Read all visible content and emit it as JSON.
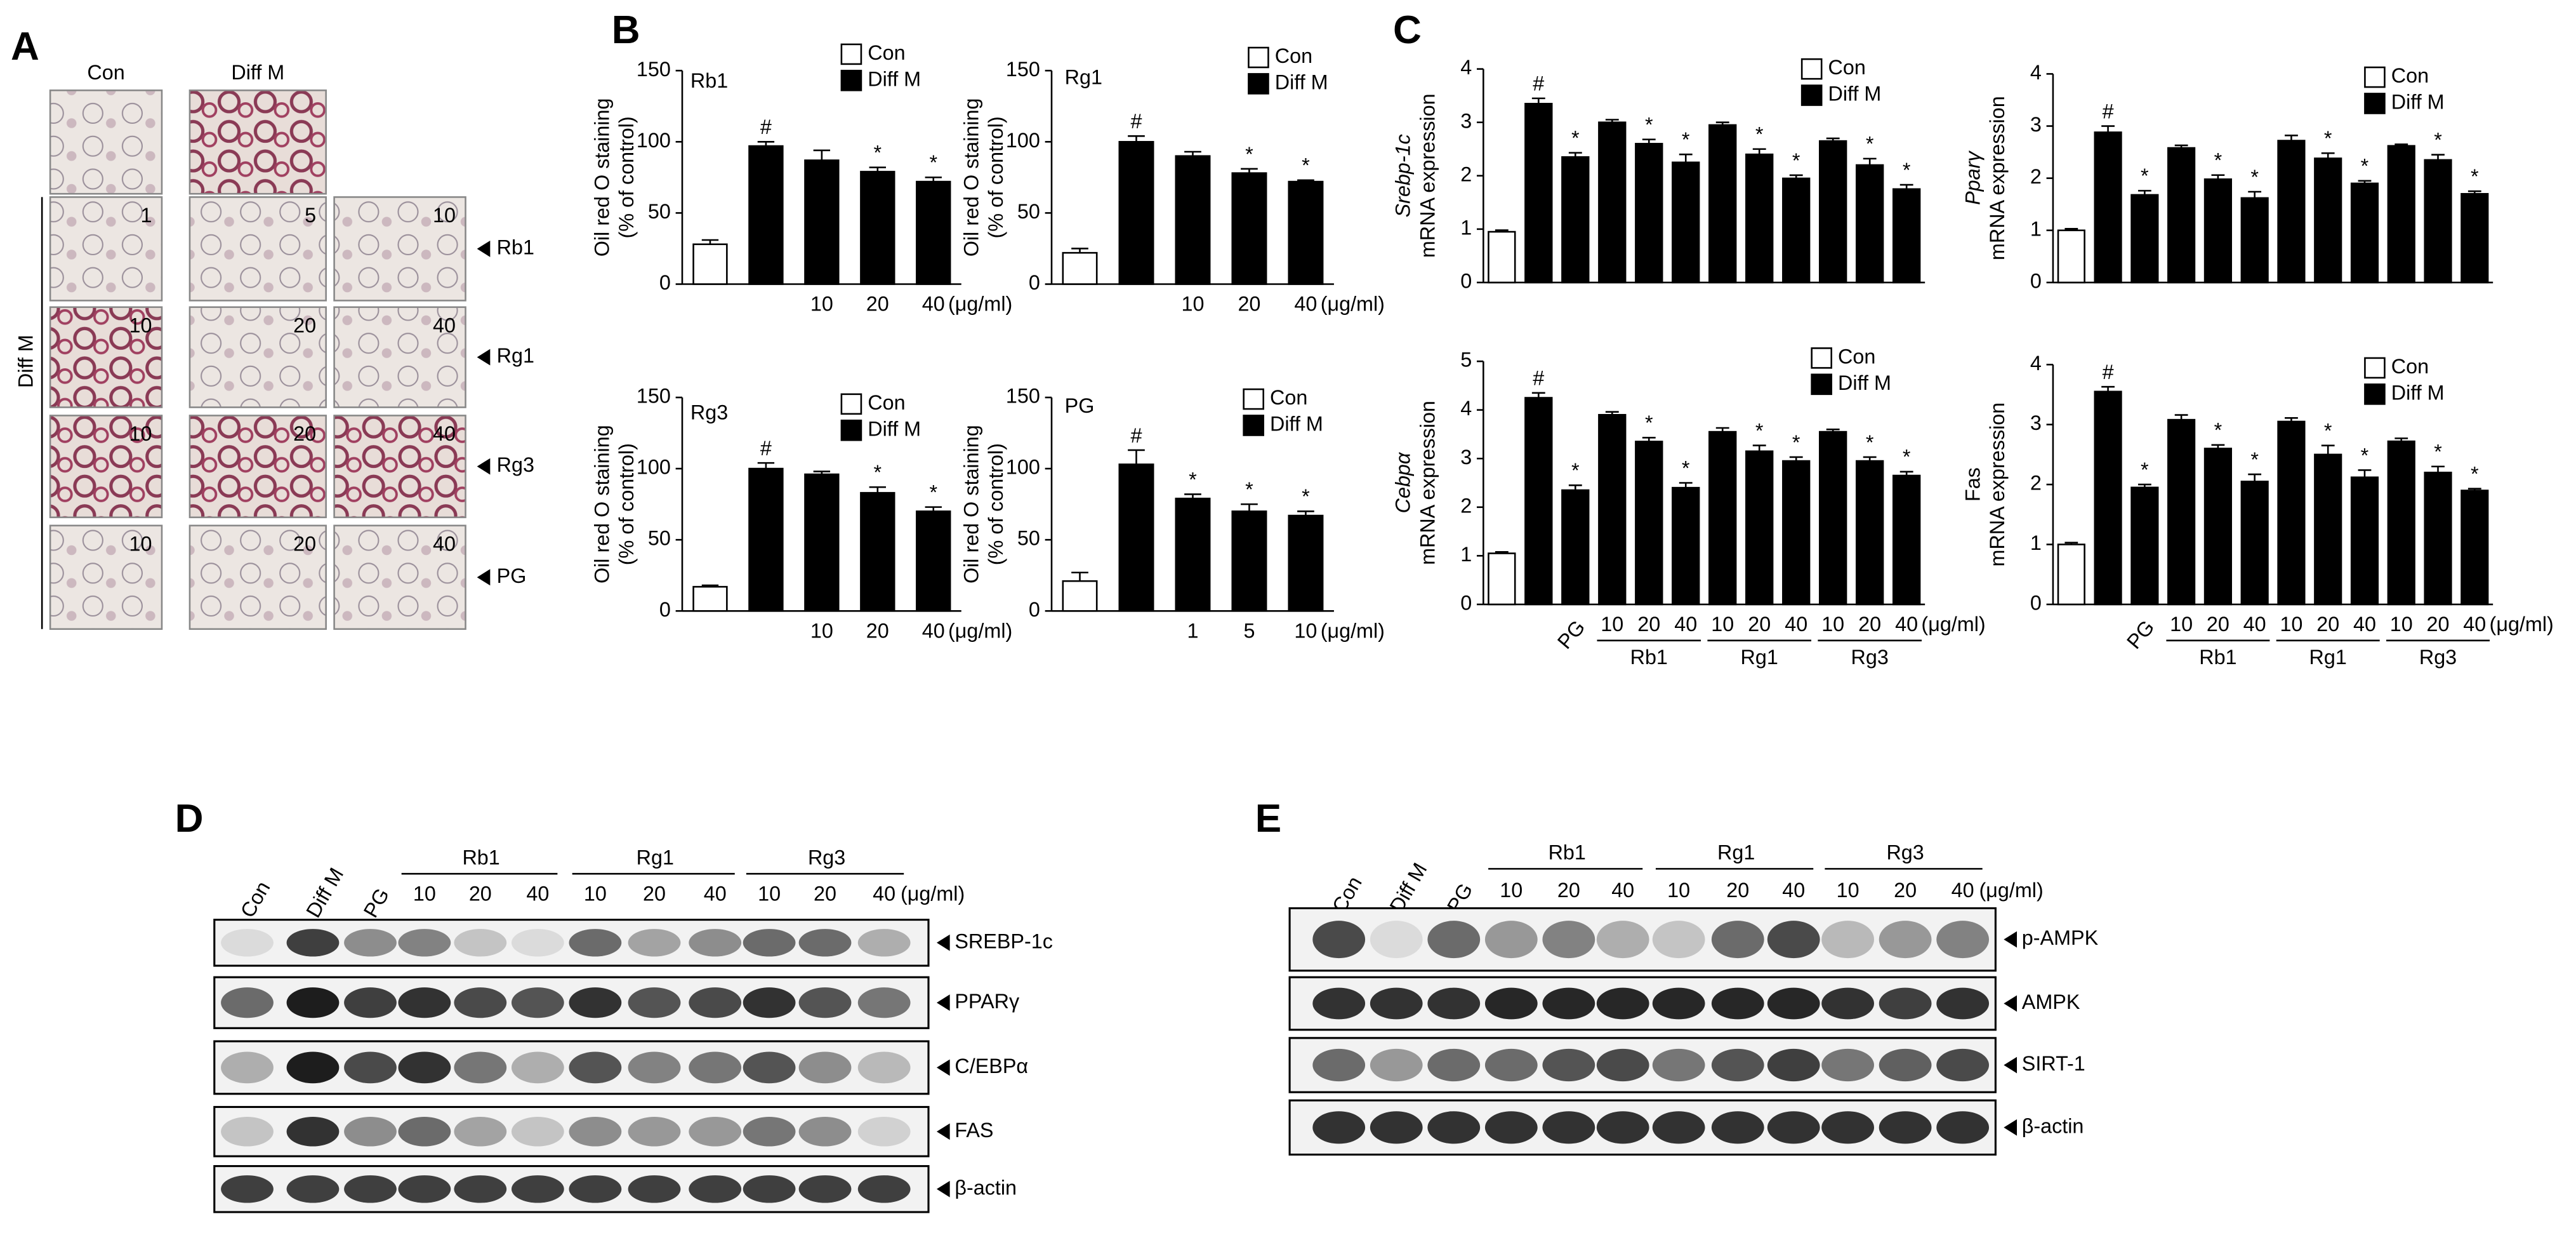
{
  "panel_labels": [
    "A",
    "B",
    "C",
    "D",
    "E"
  ],
  "panel_a": {
    "columns": [
      "Con",
      "Diff M"
    ],
    "side_label": "Diff M",
    "rows": [
      {
        "label": "Rb1",
        "doses": [
          "1",
          "5",
          "10"
        ]
      },
      {
        "label": "Rg1",
        "doses": [
          "10",
          "20",
          "40"
        ]
      },
      {
        "label": "Rg3",
        "doses": [
          "10",
          "20",
          "40"
        ]
      },
      {
        "label": "PG",
        "doses": [
          "10",
          "20",
          "40"
        ]
      }
    ]
  },
  "chart_data": [
    {
      "type": "bar",
      "title": "Rb1",
      "ylabel": [
        "Oil red O staining",
        "(% of control)"
      ],
      "ylim": [
        0,
        150
      ],
      "yticks": [
        0,
        50,
        100,
        150
      ],
      "legend": [
        {
          "name": "Con",
          "color": "#ffffff"
        },
        {
          "name": "Diff M",
          "color": "#000000"
        }
      ],
      "categories": [
        null,
        null,
        "10",
        "20",
        "40"
      ],
      "unit": "(μg/ml)",
      "values": [
        28,
        97,
        87,
        79,
        72
      ],
      "errors": [
        3,
        3,
        7,
        3,
        3
      ],
      "colors": [
        "#ffffff",
        "#000000",
        "#000000",
        "#000000",
        "#000000"
      ],
      "markers": [
        null,
        "#",
        null,
        "*",
        "*"
      ]
    },
    {
      "type": "bar",
      "title": "Rg1",
      "ylabel": [
        "Oil red O staining",
        "(% of control)"
      ],
      "ylim": [
        0,
        150
      ],
      "yticks": [
        0,
        50,
        100,
        150
      ],
      "legend": [
        {
          "name": "Con",
          "color": "#ffffff"
        },
        {
          "name": "Diff M",
          "color": "#000000"
        }
      ],
      "categories": [
        null,
        null,
        "10",
        "20",
        "40"
      ],
      "unit": "(μg/ml)",
      "values": [
        22,
        100,
        90,
        78,
        72
      ],
      "errors": [
        3,
        4,
        3,
        3,
        1
      ],
      "colors": [
        "#ffffff",
        "#000000",
        "#000000",
        "#000000",
        "#000000"
      ],
      "markers": [
        null,
        "#",
        null,
        "*",
        "*"
      ]
    },
    {
      "type": "bar",
      "title": "Rg3",
      "ylabel": [
        "Oil red O staining",
        "(% of control)"
      ],
      "ylim": [
        0,
        150
      ],
      "yticks": [
        0,
        50,
        100,
        150
      ],
      "legend": [
        {
          "name": "Con",
          "color": "#ffffff"
        },
        {
          "name": "Diff M",
          "color": "#000000"
        }
      ],
      "categories": [
        null,
        null,
        "10",
        "20",
        "40"
      ],
      "unit": "(μg/ml)",
      "values": [
        17,
        100,
        96,
        83,
        70
      ],
      "errors": [
        1,
        4,
        2,
        4,
        3
      ],
      "colors": [
        "#ffffff",
        "#000000",
        "#000000",
        "#000000",
        "#000000"
      ],
      "markers": [
        null,
        "#",
        null,
        "*",
        "*"
      ]
    },
    {
      "type": "bar",
      "title": "PG",
      "ylabel": [
        "Oil red O staining",
        "(% of control)"
      ],
      "ylim": [
        0,
        150
      ],
      "yticks": [
        0,
        50,
        100,
        150
      ],
      "legend": [
        {
          "name": "Con",
          "color": "#ffffff"
        },
        {
          "name": "Diff M",
          "color": "#000000"
        }
      ],
      "categories": [
        null,
        null,
        "1",
        "5",
        "10"
      ],
      "unit": "(μg/ml)",
      "values": [
        21,
        103,
        79,
        70,
        67
      ],
      "errors": [
        6,
        10,
        3,
        5,
        3
      ],
      "colors": [
        "#ffffff",
        "#000000",
        "#000000",
        "#000000",
        "#000000"
      ],
      "markers": [
        null,
        "#",
        "*",
        "*",
        "*"
      ]
    },
    {
      "type": "bar",
      "ylabel": [
        "Srebp-1c",
        "mRNA expression"
      ],
      "ylabel_italic": true,
      "ylim": [
        0,
        4
      ],
      "yticks": [
        0,
        1,
        2,
        3,
        4
      ],
      "legend": [
        {
          "name": "Con",
          "color": "#ffffff"
        },
        {
          "name": "Diff M",
          "color": "#000000"
        }
      ],
      "categories": [
        null,
        null,
        null,
        null,
        null,
        null,
        null,
        null,
        null,
        null,
        null,
        null
      ],
      "values": [
        0.95,
        3.35,
        2.35,
        3.0,
        2.6,
        2.25,
        2.95,
        2.4,
        1.95,
        2.65,
        2.2,
        1.75
      ],
      "errors": [
        0.03,
        0.1,
        0.08,
        0.05,
        0.08,
        0.15,
        0.05,
        0.1,
        0.06,
        0.05,
        0.12,
        0.08
      ],
      "colors": [
        "#ffffff",
        "#000000",
        "#000000",
        "#000000",
        "#000000",
        "#000000",
        "#000000",
        "#000000",
        "#000000",
        "#000000",
        "#000000",
        "#000000"
      ],
      "markers": [
        null,
        "#",
        "*",
        null,
        "*",
        "*",
        null,
        "*",
        "*",
        null,
        "*",
        "*"
      ]
    },
    {
      "type": "bar",
      "ylabel": [
        "Pparγ",
        "mRNA expression"
      ],
      "ylabel_italic": true,
      "ylim": [
        0,
        4
      ],
      "yticks": [
        0,
        1,
        2,
        3,
        4
      ],
      "legend": [
        {
          "name": "Con",
          "color": "#ffffff"
        },
        {
          "name": "Diff M",
          "color": "#000000"
        }
      ],
      "categories": [
        null,
        null,
        null,
        null,
        null,
        null,
        null,
        null,
        null,
        null,
        null,
        null
      ],
      "values": [
        1.0,
        2.88,
        1.68,
        2.58,
        1.98,
        1.62,
        2.72,
        2.38,
        1.9,
        2.62,
        2.35,
        1.7
      ],
      "errors": [
        0.03,
        0.12,
        0.08,
        0.05,
        0.08,
        0.12,
        0.1,
        0.1,
        0.05,
        0.03,
        0.1,
        0.05
      ],
      "colors": [
        "#ffffff",
        "#000000",
        "#000000",
        "#000000",
        "#000000",
        "#000000",
        "#000000",
        "#000000",
        "#000000",
        "#000000",
        "#000000",
        "#000000"
      ],
      "markers": [
        null,
        "#",
        "*",
        null,
        "*",
        "*",
        null,
        "*",
        "*",
        null,
        "*",
        "*"
      ]
    },
    {
      "type": "bar",
      "ylabel": [
        "Cebpα",
        "mRNA expression"
      ],
      "ylabel_italic": true,
      "ylim": [
        0,
        5
      ],
      "yticks": [
        0,
        1,
        2,
        3,
        4,
        5
      ],
      "legend": [
        {
          "name": "Con",
          "color": "#ffffff"
        },
        {
          "name": "Diff M",
          "color": "#000000"
        }
      ],
      "categories": [
        null,
        null,
        "PG",
        "10",
        "20",
        "40",
        "10",
        "20",
        "40",
        "10",
        "20",
        "40"
      ],
      "unit": "(μg/ml)",
      "groups": [
        "Rb1",
        "Rg1",
        "Rg3"
      ],
      "values": [
        1.05,
        4.25,
        2.35,
        3.9,
        3.35,
        2.4,
        3.55,
        3.15,
        2.95,
        3.55,
        2.95,
        2.65
      ],
      "errors": [
        0.03,
        0.1,
        0.1,
        0.06,
        0.08,
        0.1,
        0.08,
        0.12,
        0.08,
        0.05,
        0.08,
        0.08
      ],
      "colors": [
        "#ffffff",
        "#000000",
        "#000000",
        "#000000",
        "#000000",
        "#000000",
        "#000000",
        "#000000",
        "#000000",
        "#000000",
        "#000000",
        "#000000"
      ],
      "markers": [
        null,
        "#",
        "*",
        null,
        "*",
        "*",
        null,
        "*",
        "*",
        null,
        "*",
        "*"
      ]
    },
    {
      "type": "bar",
      "ylabel": [
        "Fas",
        "mRNA expression"
      ],
      "ylim": [
        0,
        4
      ],
      "yticks": [
        0,
        1,
        2,
        3,
        4
      ],
      "legend": [
        {
          "name": "Con",
          "color": "#ffffff"
        },
        {
          "name": "Diff M",
          "color": "#000000"
        }
      ],
      "categories": [
        null,
        null,
        "PG",
        "10",
        "20",
        "40",
        "10",
        "20",
        "40",
        "10",
        "20",
        "40"
      ],
      "unit": "(μg/ml)",
      "groups": [
        "Rb1",
        "Rg1",
        "Rg3"
      ],
      "values": [
        1.0,
        3.55,
        1.95,
        3.08,
        2.6,
        2.05,
        3.05,
        2.5,
        2.12,
        2.72,
        2.2,
        1.9
      ],
      "errors": [
        0.03,
        0.08,
        0.05,
        0.08,
        0.06,
        0.12,
        0.06,
        0.15,
        0.12,
        0.05,
        0.1,
        0.03
      ],
      "colors": [
        "#ffffff",
        "#000000",
        "#000000",
        "#000000",
        "#000000",
        "#000000",
        "#000000",
        "#000000",
        "#000000",
        "#000000",
        "#000000",
        "#000000"
      ],
      "markers": [
        null,
        "#",
        "*",
        null,
        "*",
        "*",
        null,
        "*",
        "*",
        null,
        "*",
        "*"
      ]
    }
  ],
  "blot_d": {
    "lanes": [
      "Con",
      "Diff M",
      "PG"
    ],
    "groups": [
      {
        "name": "Rb1",
        "doses": [
          "10",
          "20",
          "40"
        ]
      },
      {
        "name": "Rg1",
        "doses": [
          "10",
          "20",
          "40"
        ]
      },
      {
        "name": "Rg3",
        "doses": [
          "10",
          "20",
          "40"
        ]
      }
    ],
    "unit": "(μg/ml)",
    "bands": [
      "SREBP-1c",
      "PPARγ",
      "C/EBPα",
      "FAS",
      "β-actin"
    ]
  },
  "blot_e": {
    "lanes": [
      "Con",
      "Diff M",
      "PG"
    ],
    "groups": [
      {
        "name": "Rb1",
        "doses": [
          "10",
          "20",
          "40"
        ]
      },
      {
        "name": "Rg1",
        "doses": [
          "10",
          "20",
          "40"
        ]
      },
      {
        "name": "Rg3",
        "doses": [
          "10",
          "20",
          "40"
        ]
      }
    ],
    "unit": "(μg/ml)",
    "bands": [
      "p-AMPK",
      "AMPK",
      "SIRT-1",
      "β-actin"
    ]
  }
}
